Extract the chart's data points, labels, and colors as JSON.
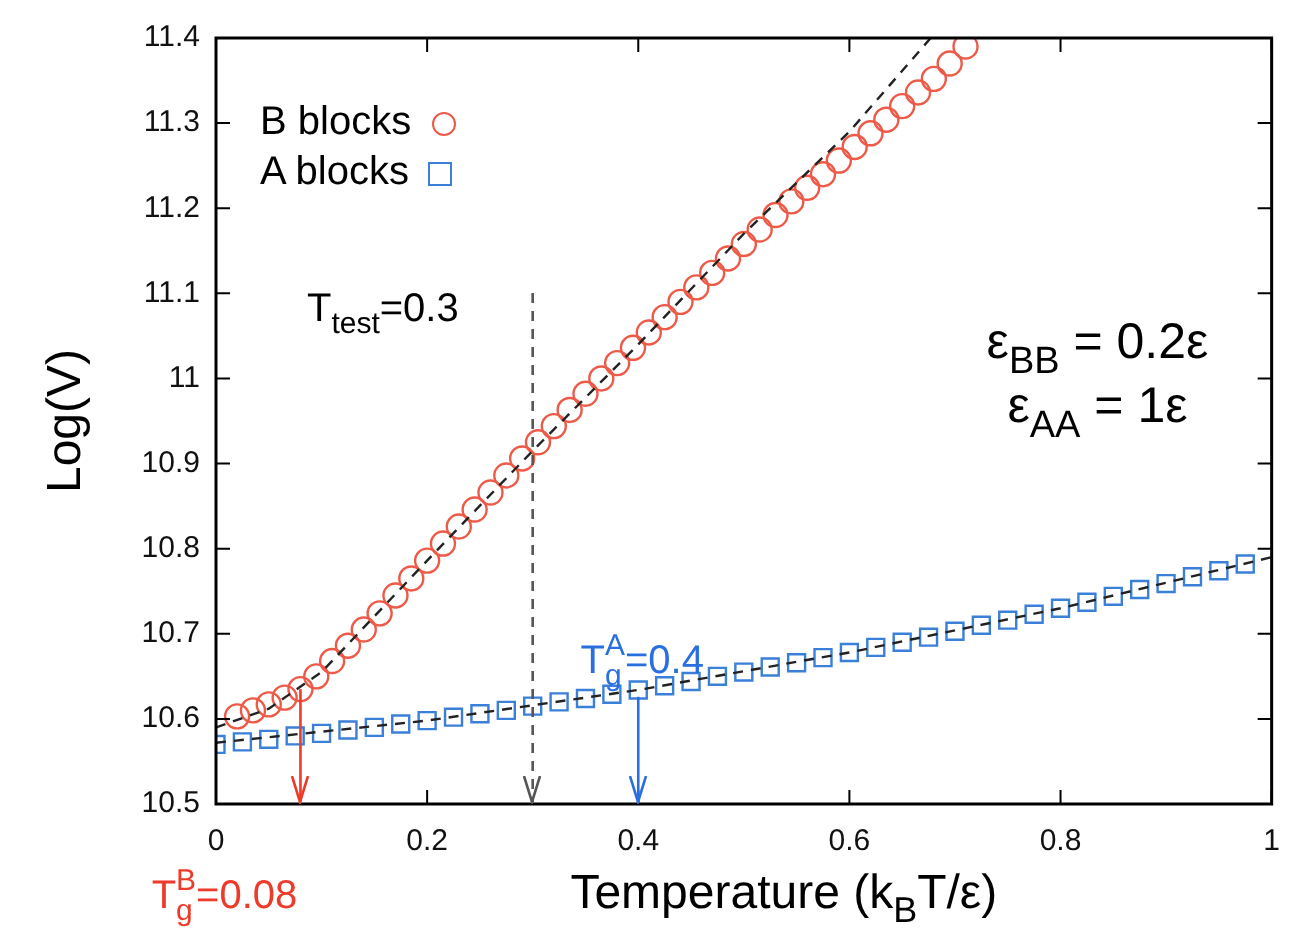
{
  "chart_data": {
    "type": "scatter",
    "xlabel": "Temperature (k$_{B}$T/ε)",
    "ylabel": "Log(V)",
    "xlim": [
      0,
      1
    ],
    "xticks": [
      0,
      0.2,
      0.4,
      0.6,
      0.8,
      1
    ],
    "ylim": [
      10.5,
      11.4
    ],
    "yticks": [
      10.5,
      10.6,
      10.7,
      10.8,
      10.9,
      11,
      11.1,
      11.2,
      11.3,
      11.4
    ],
    "grid": false,
    "legend": "top left",
    "series": [
      {
        "name": "B blocks",
        "color": "#ee5a48",
        "marker": "circle",
        "x": [
          0.02,
          0.035,
          0.05,
          0.065,
          0.08,
          0.095,
          0.11,
          0.125,
          0.14,
          0.155,
          0.17,
          0.185,
          0.2,
          0.215,
          0.23,
          0.245,
          0.26,
          0.275,
          0.29,
          0.305,
          0.32,
          0.335,
          0.35,
          0.365,
          0.38,
          0.395,
          0.41,
          0.425,
          0.44,
          0.455,
          0.47,
          0.485,
          0.5,
          0.515,
          0.53,
          0.545,
          0.56,
          0.575,
          0.59,
          0.605,
          0.62,
          0.635,
          0.65,
          0.665,
          0.68,
          0.695,
          0.71
        ],
        "values": [
          10.603,
          10.61,
          10.617,
          10.625,
          10.635,
          10.65,
          10.668,
          10.686,
          10.705,
          10.724,
          10.745,
          10.765,
          10.786,
          10.806,
          10.826,
          10.846,
          10.866,
          10.886,
          10.906,
          10.925,
          10.944,
          10.963,
          10.982,
          11.0,
          11.018,
          11.036,
          11.054,
          11.072,
          11.09,
          11.107,
          11.124,
          11.141,
          11.158,
          11.175,
          11.192,
          11.208,
          11.224,
          11.24,
          11.256,
          11.272,
          11.288,
          11.304,
          11.32,
          11.336,
          11.352,
          11.37,
          11.39
        ]
      },
      {
        "name": "A blocks",
        "color": "#3a7fd8",
        "marker": "square",
        "x": [
          0,
          0.025,
          0.05,
          0.075,
          0.1,
          0.125,
          0.15,
          0.175,
          0.2,
          0.225,
          0.25,
          0.275,
          0.3,
          0.325,
          0.35,
          0.375,
          0.4,
          0.425,
          0.45,
          0.475,
          0.5,
          0.525,
          0.55,
          0.575,
          0.6,
          0.625,
          0.65,
          0.675,
          0.7,
          0.725,
          0.75,
          0.775,
          0.8,
          0.825,
          0.85,
          0.875,
          0.9,
          0.925,
          0.95,
          0.975
        ],
        "values": [
          10.57,
          10.573,
          10.576,
          10.58,
          10.583,
          10.587,
          10.59,
          10.594,
          10.598,
          10.602,
          10.606,
          10.61,
          10.615,
          10.62,
          10.624,
          10.629,
          10.634,
          10.639,
          10.644,
          10.65,
          10.655,
          10.661,
          10.666,
          10.672,
          10.678,
          10.684,
          10.69,
          10.696,
          10.703,
          10.71,
          10.716,
          10.723,
          10.73,
          10.737,
          10.744,
          10.752,
          10.759,
          10.767,
          10.774,
          10.782
        ]
      },
      {
        "type": "line",
        "color": "#222222",
        "marker": "none",
        "line_style": "dashed",
        "x": [
          0,
          0.05,
          0.1,
          0.2,
          0.3,
          0.4,
          0.5,
          0.6,
          0.677
        ],
        "values": [
          10.59,
          10.612,
          10.655,
          10.786,
          10.915,
          11.04,
          11.17,
          11.29,
          11.4
        ]
      },
      {
        "type": "line",
        "color": "#222222",
        "marker": "none",
        "line_style": "dashed",
        "x": [
          0,
          0.2,
          0.4,
          0.6,
          0.8,
          1
        ],
        "values": [
          10.572,
          10.598,
          10.634,
          10.678,
          10.73,
          10.79
        ]
      }
    ],
    "ref_lines": [
      {
        "axis": "x",
        "value": 0.08,
        "label": "T$^{B}$$_{g}$=0.08",
        "color": "#ee3a2a"
      },
      {
        "axis": "x",
        "value": 0.3,
        "label": "T$_{test}$=0.3",
        "color": "#555555",
        "line_style": "dashed"
      },
      {
        "axis": "x",
        "value": 0.4,
        "label": "T$^{A}$$_{g}$=0.4",
        "color": "#2a6fe0"
      }
    ],
    "annotations": [
      "ε$_{BB}$ = 0.2ε",
      "ε$_{AA}$ = 1ε"
    ]
  }
}
